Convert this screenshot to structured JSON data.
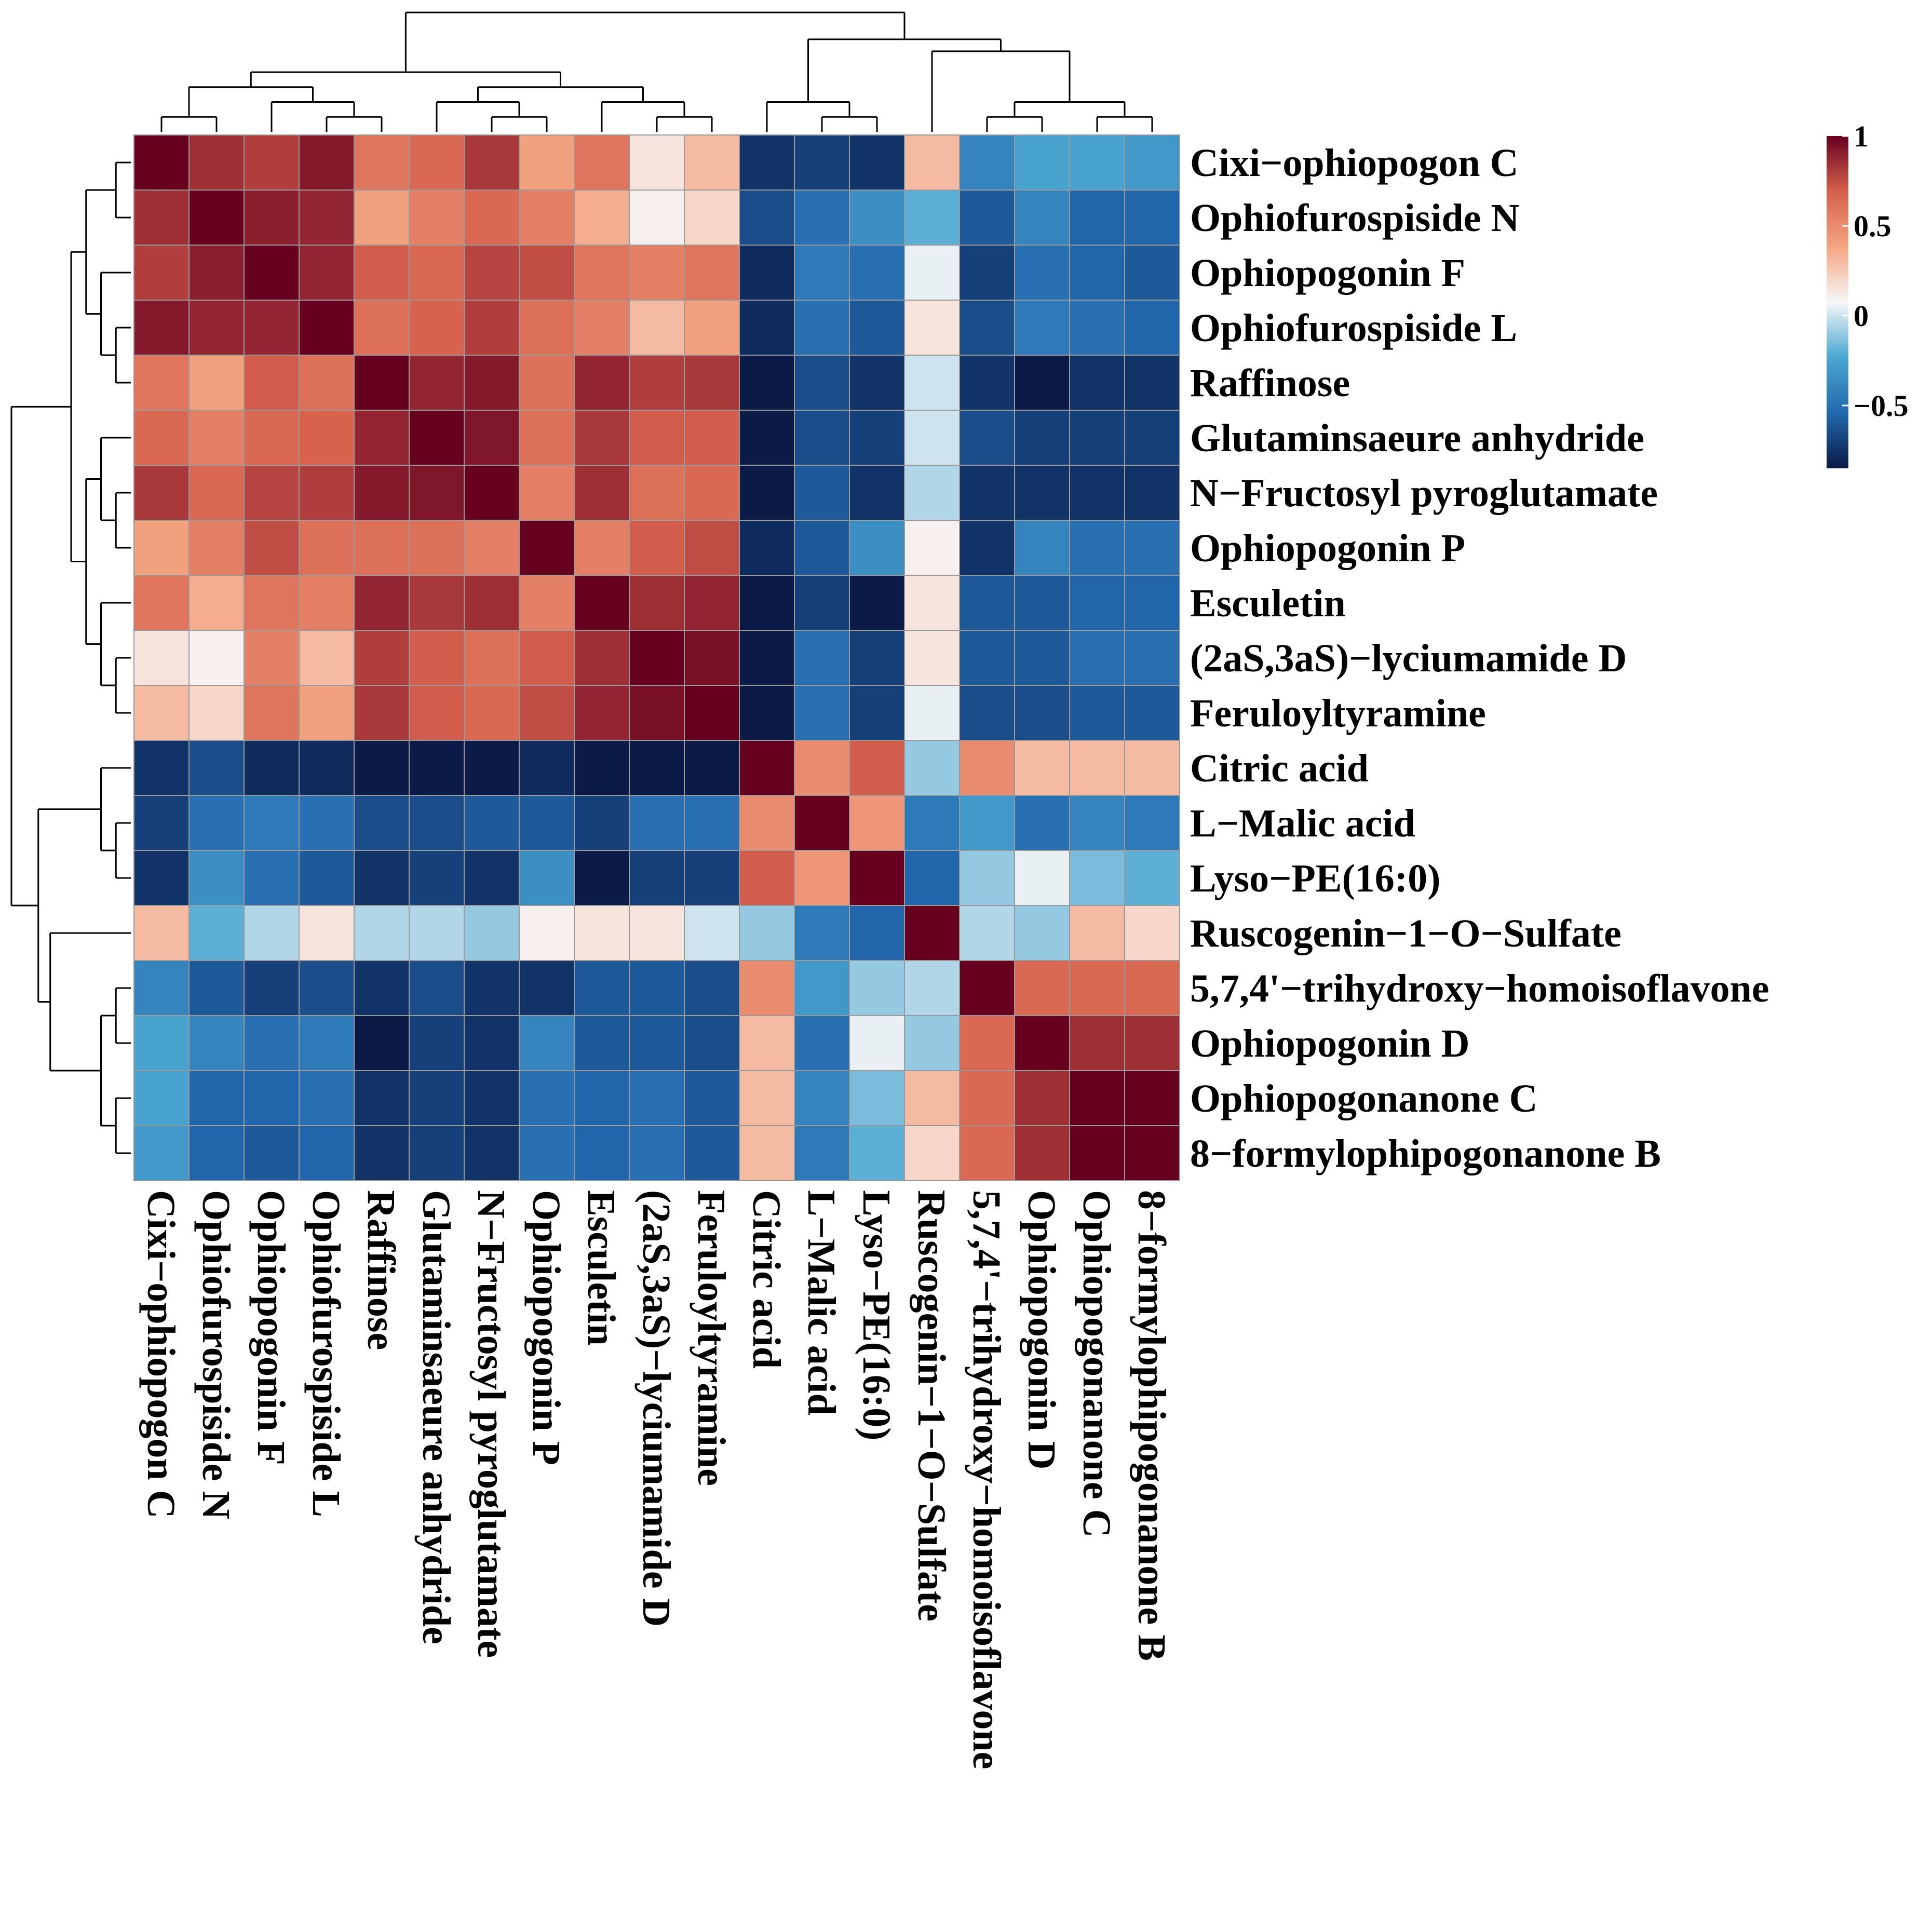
{
  "chart_data": {
    "type": "heatmap",
    "title": "",
    "labels": [
      "Cixi−ophiopogon C",
      "Ophiofurospiside N",
      "Ophiopogonin F",
      "Ophiofurospiside L",
      "Raffinose",
      "Glutaminsaeure anhydride",
      "N−Fructosyl pyroglutamate",
      "Ophiopogonin P",
      "Esculetin",
      "(2aS,3aS)−lyciumamide D",
      "Feruloyltyramine",
      "Citric acid",
      "L−Malic acid",
      "Lyso−PE(16:0)",
      "Ruscogenin−1−O−Sulfate",
      "5,7,4'−trihydroxy−homoisoflavone",
      "Ophiopogonin D",
      "Ophiopogonanone C",
      "8−formylophipogonanone B"
    ],
    "values": [
      [
        1.0,
        0.85,
        0.8,
        0.92,
        0.6,
        0.65,
        0.82,
        0.4,
        0.6,
        0.15,
        0.3,
        -0.75,
        -0.7,
        -0.75,
        0.3,
        -0.4,
        -0.25,
        -0.25,
        -0.3
      ],
      [
        0.85,
        1.0,
        0.9,
        0.88,
        0.4,
        0.55,
        0.65,
        0.55,
        0.35,
        0.1,
        0.2,
        -0.65,
        -0.5,
        -0.35,
        -0.2,
        -0.6,
        -0.4,
        -0.55,
        -0.55
      ],
      [
        0.8,
        0.9,
        1.0,
        0.88,
        0.7,
        0.65,
        0.78,
        0.75,
        0.6,
        0.55,
        0.6,
        -0.78,
        -0.45,
        -0.5,
        0.05,
        -0.7,
        -0.5,
        -0.55,
        -0.6
      ],
      [
        0.92,
        0.88,
        0.88,
        1.0,
        0.62,
        0.68,
        0.8,
        0.62,
        0.55,
        0.3,
        0.4,
        -0.78,
        -0.5,
        -0.6,
        0.15,
        -0.65,
        -0.45,
        -0.5,
        -0.55
      ],
      [
        0.6,
        0.4,
        0.7,
        0.62,
        1.0,
        0.88,
        0.92,
        0.62,
        0.88,
        0.8,
        0.82,
        -0.95,
        -0.65,
        -0.75,
        0.0,
        -0.75,
        -0.85,
        -0.75,
        -0.75
      ],
      [
        0.65,
        0.55,
        0.65,
        0.68,
        0.88,
        1.0,
        0.93,
        0.62,
        0.82,
        0.7,
        0.7,
        -0.9,
        -0.65,
        -0.7,
        0.0,
        -0.65,
        -0.7,
        -0.7,
        -0.7
      ],
      [
        0.82,
        0.65,
        0.78,
        0.8,
        0.92,
        0.93,
        1.0,
        0.55,
        0.85,
        0.62,
        0.65,
        -0.92,
        -0.6,
        -0.75,
        -0.05,
        -0.75,
        -0.75,
        -0.75,
        -0.75
      ],
      [
        0.4,
        0.55,
        0.75,
        0.62,
        0.62,
        0.62,
        0.55,
        1.0,
        0.55,
        0.7,
        0.75,
        -0.78,
        -0.6,
        -0.35,
        0.1,
        -0.75,
        -0.4,
        -0.5,
        -0.5
      ],
      [
        0.6,
        0.35,
        0.6,
        0.55,
        0.88,
        0.82,
        0.85,
        0.55,
        1.0,
        0.85,
        0.88,
        -0.92,
        -0.7,
        -0.9,
        0.15,
        -0.6,
        -0.6,
        -0.55,
        -0.55
      ],
      [
        0.15,
        0.1,
        0.55,
        0.3,
        0.8,
        0.7,
        0.62,
        0.7,
        0.85,
        1.0,
        0.95,
        -0.85,
        -0.5,
        -0.7,
        0.15,
        -0.6,
        -0.6,
        -0.5,
        -0.5
      ],
      [
        0.3,
        0.2,
        0.6,
        0.4,
        0.82,
        0.7,
        0.65,
        0.75,
        0.88,
        0.95,
        1.0,
        -0.85,
        -0.5,
        -0.7,
        0.05,
        -0.65,
        -0.65,
        -0.6,
        -0.6
      ],
      [
        -0.75,
        -0.65,
        -0.78,
        -0.78,
        -0.95,
        -0.9,
        -0.92,
        -0.78,
        -0.92,
        -0.85,
        -0.85,
        1.0,
        0.5,
        0.7,
        -0.1,
        0.5,
        0.3,
        0.3,
        0.3
      ],
      [
        -0.7,
        -0.5,
        -0.45,
        -0.5,
        -0.65,
        -0.65,
        -0.6,
        -0.6,
        -0.7,
        -0.5,
        -0.5,
        0.5,
        1.0,
        0.45,
        -0.45,
        -0.3,
        -0.5,
        -0.4,
        -0.45
      ],
      [
        -0.75,
        -0.35,
        -0.5,
        -0.6,
        -0.75,
        -0.7,
        -0.75,
        -0.35,
        -0.9,
        -0.7,
        -0.7,
        0.7,
        0.45,
        1.0,
        -0.55,
        -0.1,
        0.05,
        -0.15,
        -0.2
      ],
      [
        0.3,
        -0.2,
        -0.05,
        0.15,
        -0.05,
        -0.05,
        -0.1,
        0.1,
        0.15,
        0.15,
        0.0,
        -0.1,
        -0.45,
        -0.55,
        1.0,
        -0.05,
        -0.1,
        0.3,
        0.2
      ],
      [
        -0.4,
        -0.6,
        -0.7,
        -0.65,
        -0.75,
        -0.65,
        -0.75,
        -0.75,
        -0.6,
        -0.6,
        -0.65,
        0.5,
        -0.3,
        -0.1,
        -0.05,
        1.0,
        0.65,
        0.65,
        0.65
      ],
      [
        -0.25,
        -0.4,
        -0.5,
        -0.45,
        -0.85,
        -0.7,
        -0.75,
        -0.4,
        -0.6,
        -0.6,
        -0.65,
        0.3,
        -0.5,
        0.05,
        -0.1,
        0.65,
        1.0,
        0.85,
        0.85
      ],
      [
        -0.25,
        -0.55,
        -0.55,
        -0.5,
        -0.75,
        -0.7,
        -0.75,
        -0.5,
        -0.55,
        -0.5,
        -0.6,
        0.3,
        -0.4,
        -0.15,
        0.3,
        0.65,
        0.85,
        1.0,
        1.0
      ],
      [
        -0.3,
        -0.55,
        -0.6,
        -0.55,
        -0.75,
        -0.7,
        -0.75,
        -0.5,
        -0.55,
        -0.5,
        -0.6,
        0.3,
        -0.45,
        -0.2,
        0.2,
        0.65,
        0.85,
        1.0,
        1.0
      ]
    ],
    "color_scale": {
      "min": -0.85,
      "max": 1,
      "colors": [
        "#0b1a47",
        "#2268ad",
        "#4ba6d1",
        "#f7f7f7",
        "#f4a582",
        "#d6604d",
        "#67001f"
      ],
      "ticks": [
        {
          "value": 1,
          "label": "1"
        },
        {
          "value": 0.5,
          "label": "0.5"
        },
        {
          "value": 0,
          "label": "0"
        },
        {
          "value": -0.5,
          "label": "−0.5"
        }
      ]
    },
    "dendrogram": {
      "clusters": [
        [
          0,
          1,
          2,
          3,
          4,
          5,
          6,
          7,
          8,
          9,
          10
        ],
        [
          11,
          12,
          13
        ],
        [
          14
        ],
        [
          15,
          16,
          17,
          18
        ]
      ]
    },
    "legend_position": "top-right"
  }
}
